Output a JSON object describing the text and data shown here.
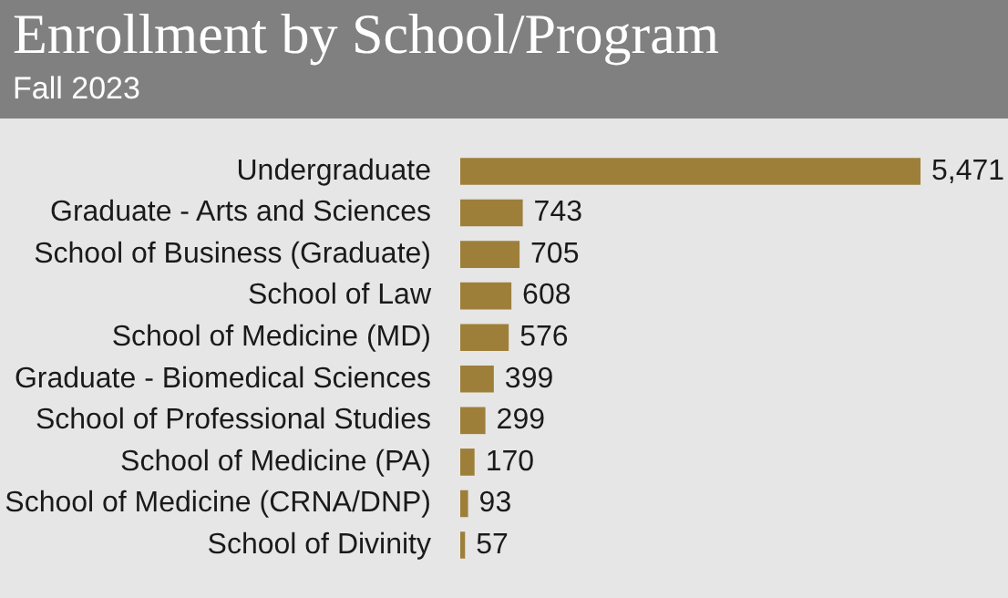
{
  "chart_data": {
    "type": "bar",
    "orientation": "horizontal",
    "title": "Enrollment by School/Program",
    "subtitle": "Fall 2023",
    "categories": [
      "Undergraduate",
      "Graduate - Arts and Sciences",
      "School of Business (Graduate)",
      "School of Law",
      "School of Medicine (MD)",
      "Graduate - Biomedical Sciences",
      "School of Professional Studies",
      "School of Medicine (PA)",
      "School of Medicine (CRNA/DNP)",
      "School of Divinity"
    ],
    "values": [
      5471,
      743,
      705,
      608,
      576,
      399,
      299,
      170,
      93,
      57
    ],
    "value_labels": [
      "5,471",
      "743",
      "705",
      "608",
      "576",
      "399",
      "299",
      "170",
      "93",
      "57"
    ],
    "color": "#9e7f3a",
    "grid": false,
    "legend": false
  }
}
